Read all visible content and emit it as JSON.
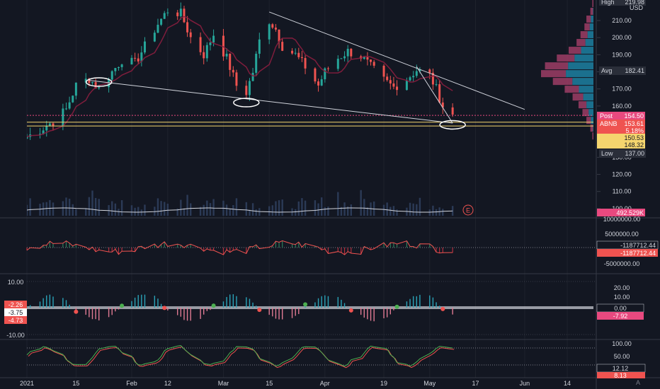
{
  "chart_data": [
    {
      "type": "candlestick",
      "panel": "price",
      "symbol": "ABNB",
      "x_dates": [
        "2020-12-31",
        "2021-01-15",
        "2021-02-01",
        "2021-02-12",
        "2021-03-01",
        "2021-03-15",
        "2021-04-01",
        "2021-04-19",
        "2021-05-03",
        "2021-05-17",
        "2021-06-01",
        "2021-06-14"
      ],
      "close_series": [
        [
          "2020-12-31",
          142
        ],
        [
          "2021-01-04",
          146
        ],
        [
          "2021-01-08",
          151
        ],
        [
          "2021-01-12",
          158
        ],
        [
          "2021-01-15",
          172
        ],
        [
          "2021-01-19",
          176
        ],
        [
          "2021-01-22",
          170
        ],
        [
          "2021-01-26",
          180
        ],
        [
          "2021-01-29",
          187
        ],
        [
          "2021-02-02",
          185
        ],
        [
          "2021-02-05",
          195
        ],
        [
          "2021-02-09",
          208
        ],
        [
          "2021-02-12",
          216
        ],
        [
          "2021-02-16",
          214
        ],
        [
          "2021-02-19",
          200
        ],
        [
          "2021-02-23",
          190
        ],
        [
          "2021-02-26",
          202
        ],
        [
          "2021-03-02",
          188
        ],
        [
          "2021-03-05",
          172
        ],
        [
          "2021-03-08",
          168
        ],
        [
          "2021-03-10",
          180
        ],
        [
          "2021-03-12",
          198
        ],
        [
          "2021-03-15",
          210
        ],
        [
          "2021-03-17",
          205
        ],
        [
          "2021-03-19",
          195
        ],
        [
          "2021-03-23",
          190
        ],
        [
          "2021-03-26",
          183
        ],
        [
          "2021-03-30",
          172
        ],
        [
          "2021-04-01",
          180
        ],
        [
          "2021-04-05",
          188
        ],
        [
          "2021-04-08",
          192
        ],
        [
          "2021-04-12",
          189
        ],
        [
          "2021-04-15",
          183
        ],
        [
          "2021-04-19",
          175
        ],
        [
          "2021-04-22",
          171
        ],
        [
          "2021-04-26",
          176
        ],
        [
          "2021-04-29",
          181
        ],
        [
          "2021-05-03",
          178
        ],
        [
          "2021-05-05",
          170
        ],
        [
          "2021-05-07",
          160
        ],
        [
          "2021-05-10",
          154.5
        ]
      ],
      "volume_series": [
        110,
        140,
        95,
        180,
        130,
        100,
        90,
        120,
        150,
        130,
        110,
        95,
        100,
        180,
        150,
        120,
        100,
        95,
        90,
        110,
        100,
        95,
        105,
        90,
        100,
        95,
        110,
        90,
        100,
        95,
        105,
        98
      ],
      "volume_last": "492.529K",
      "y_ticks": [
        "219.98",
        "210.00",
        "200.00",
        "190.00",
        "180.00",
        "170.00",
        "160.00",
        "150.00",
        "140.00",
        "130.00",
        "120.00",
        "110.00",
        "100.00"
      ],
      "ylim": [
        95,
        222
      ],
      "labels": {
        "high": "High",
        "high_val": "219.98",
        "currency": "USD",
        "avg": "Avg",
        "avg_val": "182.41",
        "post": "Post",
        "post_val": "154.50",
        "sym": "ABNB",
        "sym_val": "153.61",
        "pct": "5.18%",
        "h1": "150.53",
        "h2": "148.32",
        "low": "Low",
        "low_val": "137.00"
      },
      "horizontal_lines": [
        150.53,
        148.32
      ],
      "trendlines": [
        {
          "from": [
            "2021-01-19",
            175
          ],
          "to": [
            "2021-05-10",
            150
          ]
        },
        {
          "from": [
            "2021-03-15",
            215
          ],
          "to": [
            "2021-06-01",
            158
          ]
        },
        {
          "from": [
            "2021-04-29",
            183
          ],
          "to": [
            "2021-05-10",
            150
          ]
        }
      ],
      "circles": [
        {
          "date": "2021-01-22",
          "price": 174
        },
        {
          "date": "2021-03-08",
          "price": 162
        },
        {
          "date": "2021-05-10",
          "price": 149
        }
      ],
      "event_marker": "E",
      "volume_profile": [
        2,
        3,
        5,
        6,
        8,
        10,
        14,
        20,
        26,
        28,
        22,
        16,
        12,
        9,
        7,
        5,
        3,
        2
      ]
    },
    {
      "type": "line",
      "panel": "histogram oscillator",
      "y_ticks": [
        "10000000.00",
        "5000000.00",
        "-5000000.00"
      ],
      "labels": [
        "-1187712.44",
        "-1187712.44"
      ]
    },
    {
      "type": "histogram",
      "panel": "momentum",
      "y_ticks_right": [
        "20.00",
        "10.00",
        "0.00",
        "-7.92"
      ],
      "y_ticks_left": [
        "10.00",
        "-10.00"
      ],
      "left_labels": [
        "-2.26",
        "-3.75",
        "-4.73"
      ]
    },
    {
      "type": "line",
      "panel": "stochastic",
      "y_ticks": [
        "100.00",
        "50.00",
        "12.12",
        "8.13"
      ]
    }
  ],
  "x_labels": [
    "2021",
    "15",
    "Feb",
    "12",
    "Mar",
    "15",
    "Apr",
    "19",
    "May",
    "17",
    "Jun",
    "14"
  ],
  "settings_icon": "A",
  "colors": {
    "background": "#131722",
    "up": "#26a69a",
    "down": "#ef5350",
    "accent_yellow": "#f5d56e",
    "pink_label": "#e8497f"
  }
}
